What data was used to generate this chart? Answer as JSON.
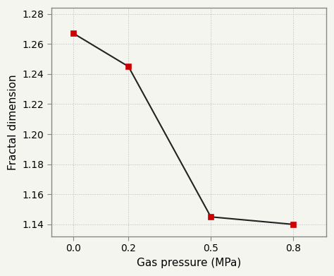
{
  "x": [
    0,
    0.2,
    0.5,
    0.8
  ],
  "y": [
    1.267,
    1.245,
    1.145,
    1.14
  ],
  "marker": "s",
  "marker_color": "#cc0000",
  "marker_size": 6,
  "line_color": "#222222",
  "line_width": 1.5,
  "xlabel": "Gas pressure (MPa)",
  "ylabel": "Fractal dimension",
  "xlim": [
    -0.08,
    0.92
  ],
  "ylim": [
    1.132,
    1.284
  ],
  "xticks": [
    0,
    0.2,
    0.5,
    0.8
  ],
  "yticks": [
    1.14,
    1.16,
    1.18,
    1.2,
    1.22,
    1.24,
    1.26,
    1.28
  ],
  "grid_color": "#bbbbbb",
  "grid_linestyle": ":",
  "grid_linewidth": 0.7,
  "background_color": "#f5f5f0",
  "plot_bg_color": "#f5f5f0",
  "xlabel_fontsize": 11,
  "ylabel_fontsize": 11,
  "tick_fontsize": 10,
  "spine_color": "#888888",
  "spine_linewidth": 1.0
}
